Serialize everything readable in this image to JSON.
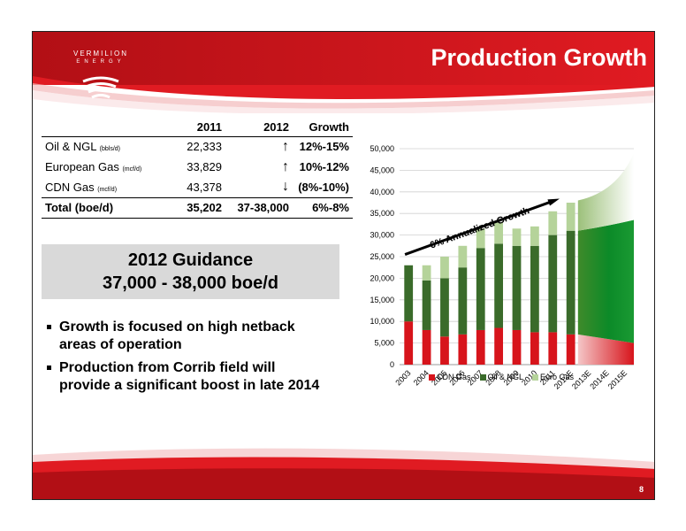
{
  "header": {
    "title": "Production Growth",
    "logo_line1": "VERMILION",
    "logo_line2": "ENERGY",
    "colors": {
      "red": "#d7141b",
      "dark_red": "#a30d12"
    }
  },
  "table": {
    "headers": [
      "",
      "2011",
      "2012",
      "Growth"
    ],
    "rows": [
      {
        "label": "Oil & NGL",
        "unit": "(bbls/d)",
        "y2011": "22,333",
        "arrow": "↑",
        "growth": "12%-15%"
      },
      {
        "label": "European Gas",
        "unit": "(mcf/d)",
        "y2011": "33,829",
        "arrow": "↑",
        "growth": "10%-12%"
      },
      {
        "label": "CDN Gas",
        "unit": "(mcf/d)",
        "y2011": "43,378",
        "arrow": "↓",
        "growth": "(8%-10%)"
      }
    ],
    "total": {
      "label": "Total (boe/d)",
      "y2011": "35,202",
      "y2012": "37-38,000",
      "growth": "6%-8%"
    }
  },
  "guidance": {
    "line1": "2012 Guidance",
    "line2": "37,000 - 38,000 boe/d"
  },
  "bullets": [
    "Growth is focused on high netback areas of operation",
    "Production from Corrib field will provide a significant boost in late 2014"
  ],
  "chart_data": {
    "type": "bar",
    "stacked": true,
    "categories": [
      "2003",
      "2004",
      "2005",
      "2006",
      "2007",
      "2008",
      "2009",
      "2010",
      "2011",
      "2012E",
      "2013E",
      "2014E",
      "2015E"
    ],
    "series": [
      {
        "name": "CDN Gas",
        "color": "#d7141b",
        "values": [
          10000,
          8000,
          6500,
          7000,
          8000,
          8500,
          8000,
          7500,
          7500,
          7000,
          null,
          null,
          null
        ]
      },
      {
        "name": "Oil & NGL",
        "color": "#3a6b2a",
        "values": [
          13000,
          11500,
          13500,
          15500,
          19000,
          19500,
          19500,
          20000,
          22500,
          24000,
          null,
          null,
          null
        ]
      },
      {
        "name": "Euro Gas",
        "color": "#b5d39a",
        "values": [
          0,
          3500,
          5000,
          5000,
          4500,
          5000,
          4000,
          4500,
          5500,
          6500,
          null,
          null,
          null
        ]
      }
    ],
    "projection_note": "2013E-2015E shown as shaded forecast band",
    "annotation": "6% Annualized Growth",
    "ylim": [
      0,
      50000
    ],
    "yticks": [
      "0",
      "5,000",
      "10,000",
      "15,000",
      "20,000",
      "25,000",
      "30,000",
      "35,000",
      "40,000",
      "45,000",
      "50,000"
    ],
    "grid": true,
    "legend_position": "bottom"
  },
  "footer": {
    "page_number": "8"
  }
}
